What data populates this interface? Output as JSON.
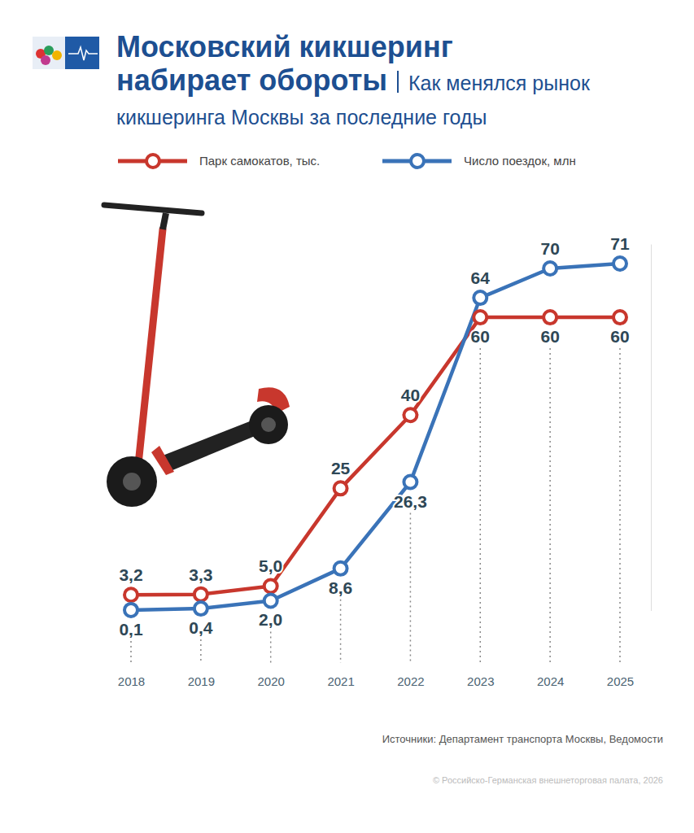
{
  "chart_data": {
    "type": "line",
    "title": "Московский кикшеринг набирает обороты",
    "subtitle": "Как менялся рынок кикшеринга Москвы за последние годы",
    "categories": [
      "2018",
      "2019",
      "2020",
      "2021",
      "2022",
      "2023",
      "2024",
      "2025"
    ],
    "series": [
      {
        "name": "Парк самокатов, тыс.",
        "color": "#c8372d",
        "marker": "circle",
        "values": [
          3.2,
          3.3,
          5.0,
          25,
          40,
          60,
          60,
          60
        ],
        "value_labels": [
          "3,2",
          "3,3",
          "5,0",
          "25",
          "40",
          "60",
          "60",
          "60"
        ]
      },
      {
        "name": "Число поездок, млн",
        "color": "#3a73b8",
        "marker": "circle",
        "values": [
          0.1,
          0.4,
          2.0,
          8.6,
          26.3,
          64,
          70,
          71
        ],
        "value_labels": [
          "0,1",
          "0,4",
          "2,0",
          "8,6",
          "26,3",
          "64",
          "70",
          "71"
        ]
      }
    ],
    "ylim": [
      0,
      75
    ],
    "tick_labels": "x",
    "data_labels": true,
    "legend": "top",
    "source": "Источники: Департамент транспорта Москвы, Ведомости",
    "credit": "© Российско-Германская внешнеторговая палата, 2026"
  }
}
